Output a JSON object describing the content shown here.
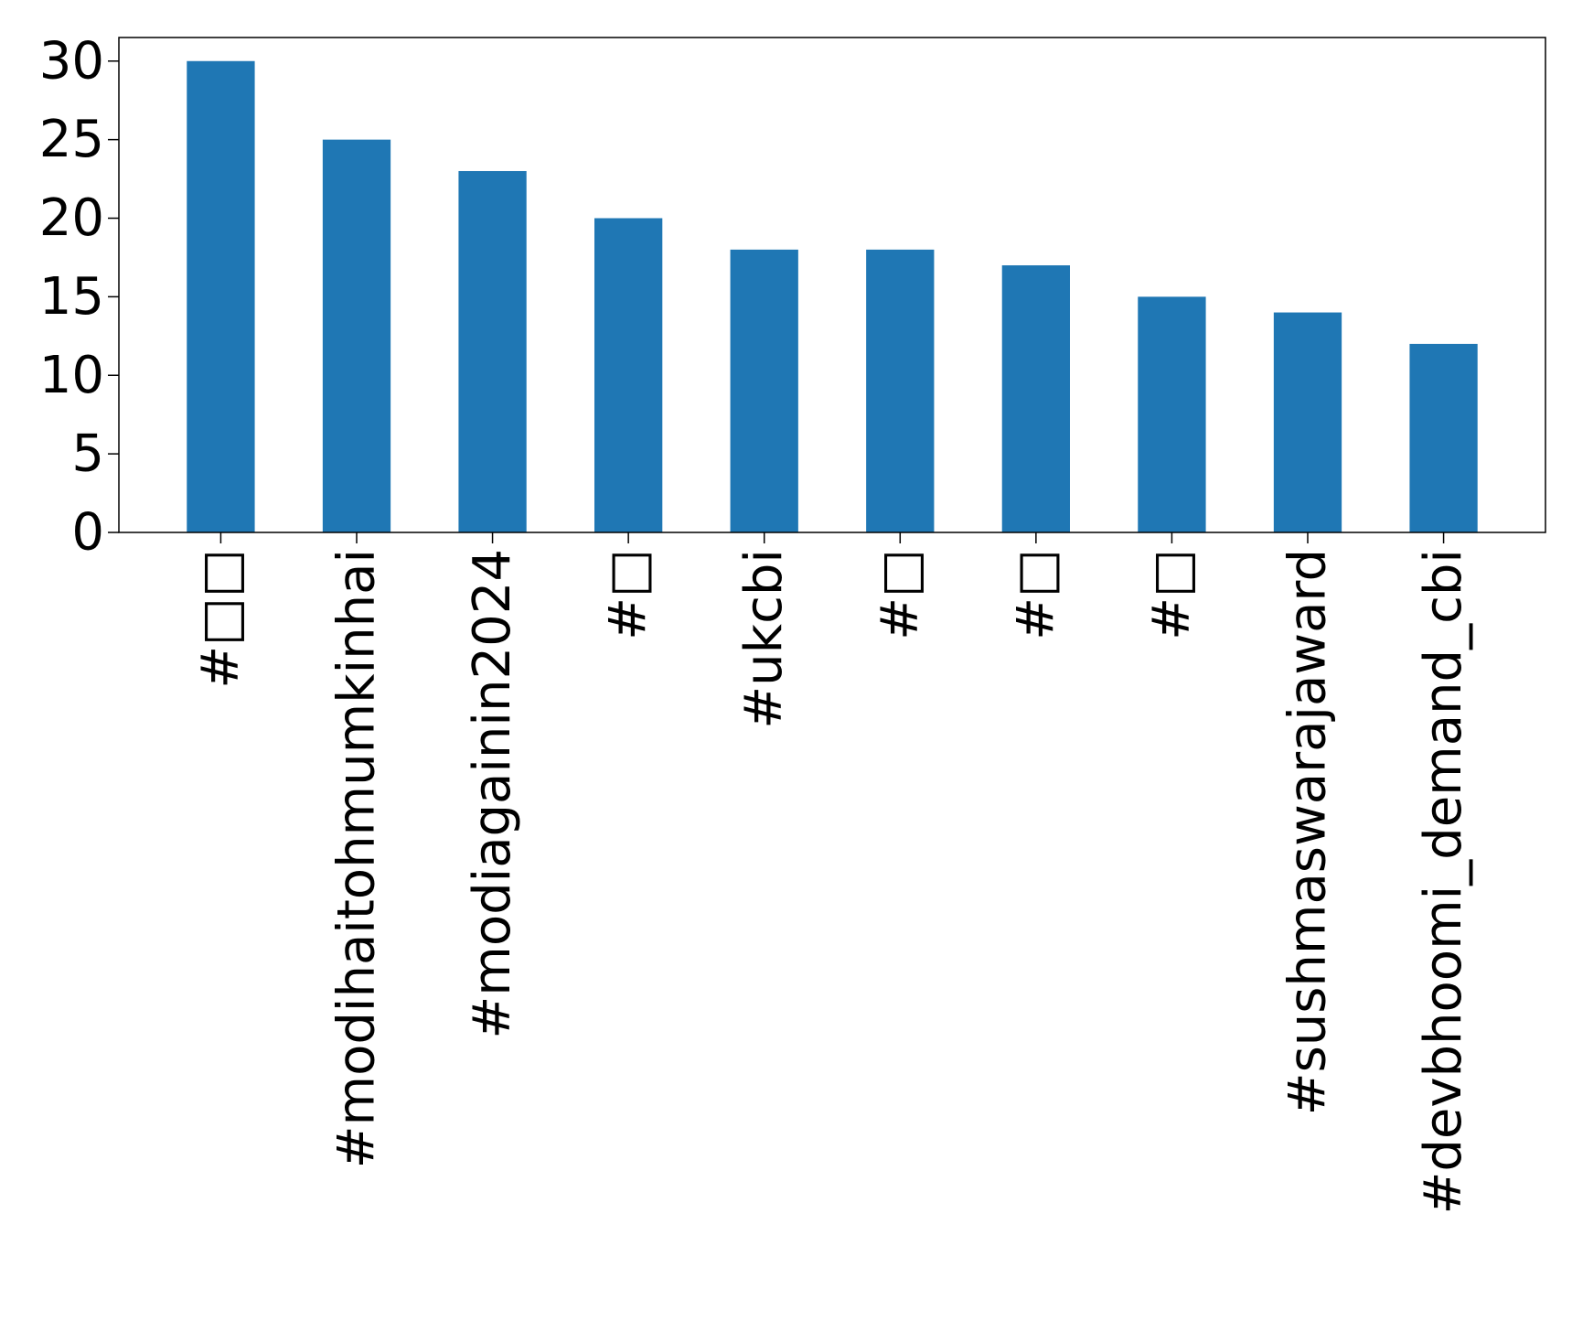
{
  "chart_data": {
    "type": "bar",
    "title": "",
    "xlabel": "",
    "ylabel": "",
    "categories": [
      "#□□",
      "#modihaitohmumkinhai",
      "#modiagainin2024",
      "#□",
      "#ukcbi",
      "#□",
      "#□",
      "#□",
      "#sushmaswarajaward",
      "#devbhoomi_demand_cbi"
    ],
    "values": [
      30,
      25,
      23,
      20,
      18,
      18,
      17,
      15,
      14,
      12
    ],
    "ylim": [
      0,
      31.5
    ],
    "yticks": [
      0,
      5,
      10,
      15,
      20,
      25,
      30
    ],
    "ytick_labels": [
      "0",
      "5",
      "10",
      "15",
      "20",
      "25",
      "30"
    ],
    "grid": false,
    "legend": "none",
    "bar_color": "#1f77b4"
  }
}
